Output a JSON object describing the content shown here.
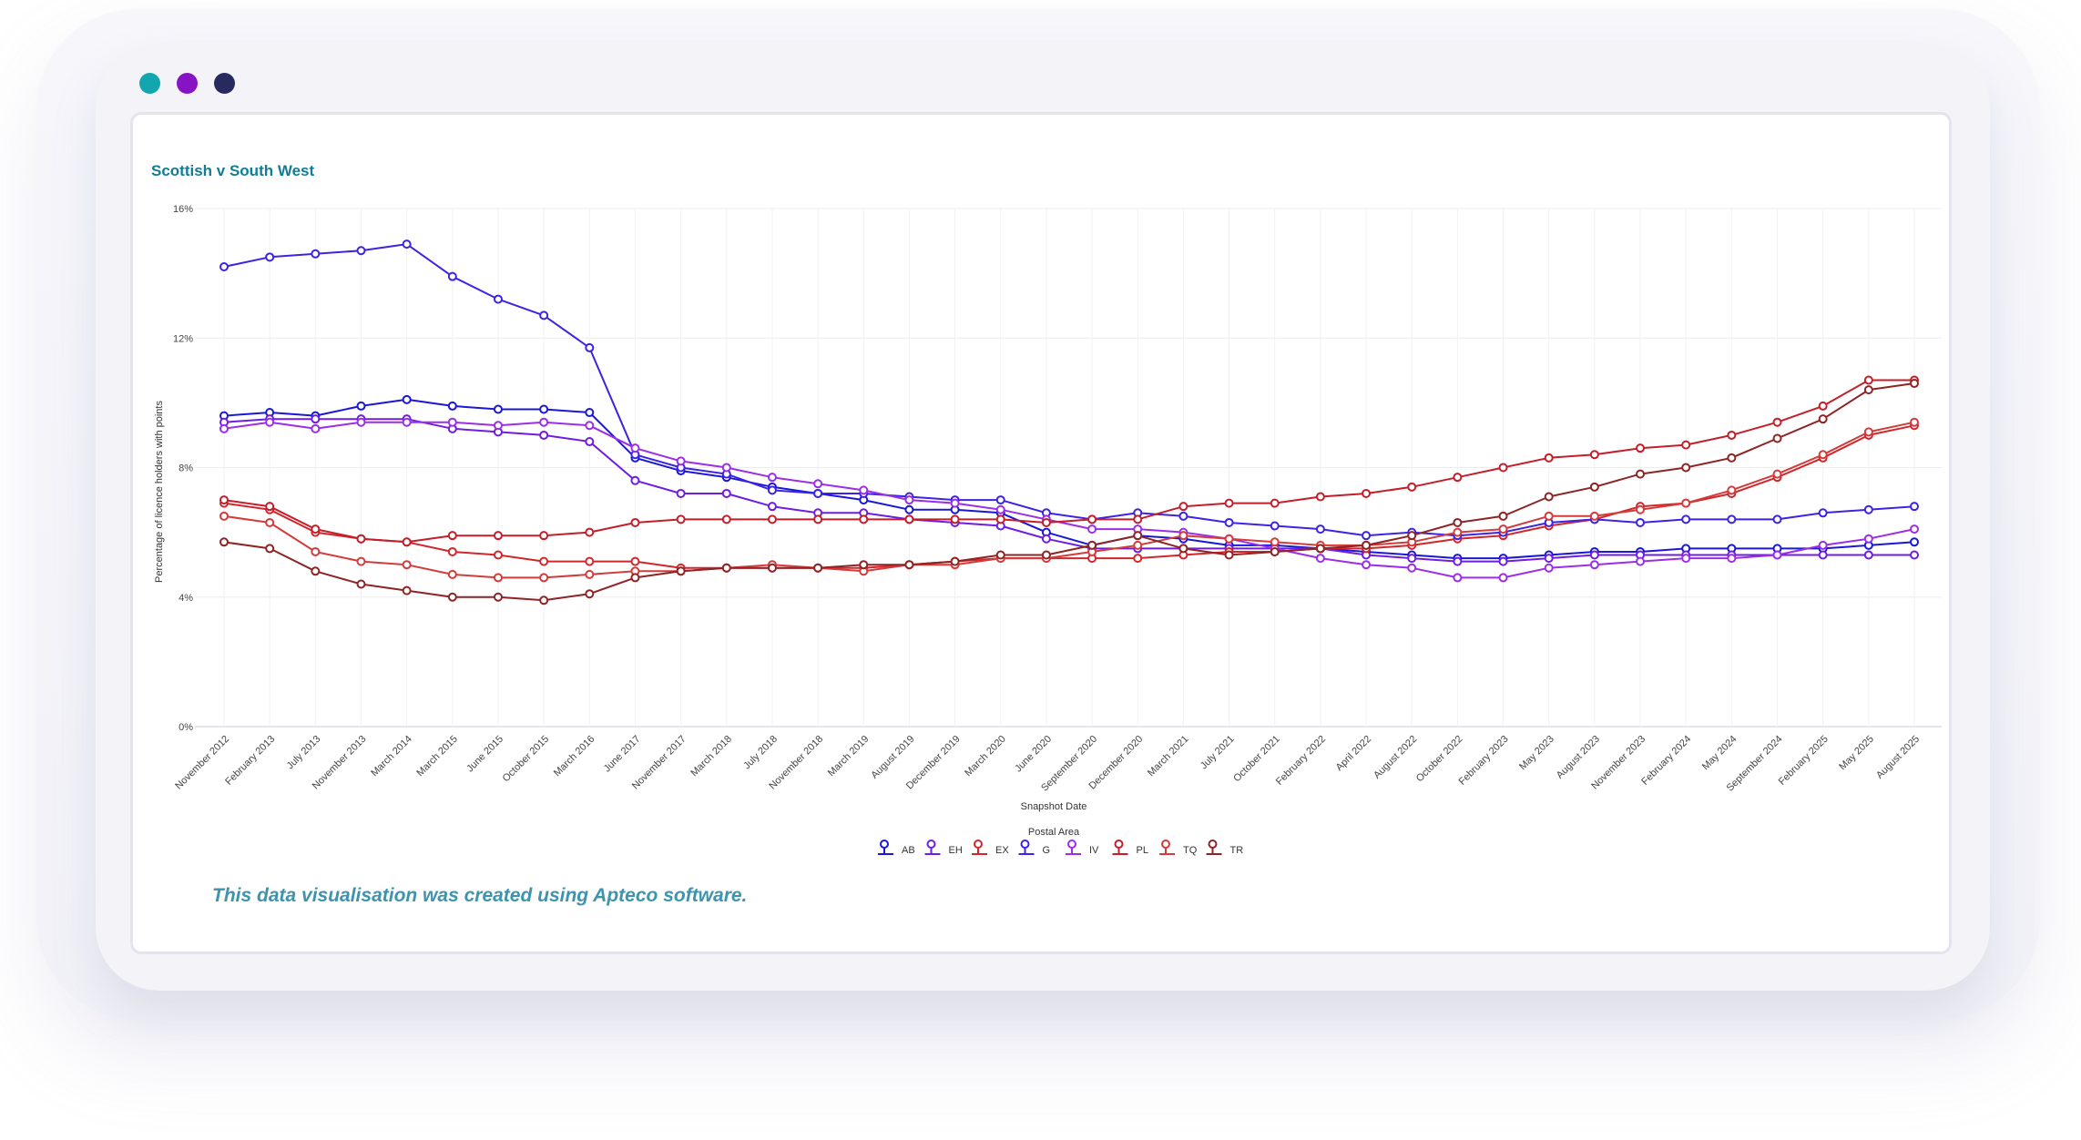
{
  "window": {
    "controls": [
      {
        "name": "teal",
        "color": "#12a6ae"
      },
      {
        "name": "purple",
        "color": "#8613c4"
      },
      {
        "name": "navy",
        "color": "#262a5e"
      }
    ]
  },
  "chart_data": {
    "type": "line",
    "title": "Scottish v South West",
    "xlabel": "Snapshot Date",
    "ylabel": "Percentage of licence holders with points",
    "ylim": [
      0,
      16
    ],
    "yticks": [
      "0%",
      "4%",
      "8%",
      "12%",
      "16%"
    ],
    "grid": true,
    "legend_title": "Postal Area",
    "legend_position": "bottom-center",
    "x": [
      "November 2012",
      "February 2013",
      "July 2013",
      "November 2013",
      "March 2014",
      "March 2015",
      "June 2015",
      "October 2015",
      "March 2016",
      "June 2017",
      "November 2017",
      "March 2018",
      "July 2018",
      "November 2018",
      "March 2019",
      "August 2019",
      "December 2019",
      "March 2020",
      "June 2020",
      "September 2020",
      "December 2020",
      "March 2021",
      "July 2021",
      "October 2021",
      "February 2022",
      "April 2022",
      "August 2022",
      "October 2022",
      "February 2023",
      "May 2023",
      "August 2023",
      "November 2023",
      "February 2024",
      "May 2024",
      "September 2024",
      "February 2025",
      "May 2025",
      "August 2025"
    ],
    "series": [
      {
        "name": "AB",
        "color": "#1a18d6",
        "values": [
          9.6,
          9.7,
          9.6,
          9.9,
          10.1,
          9.9,
          9.8,
          9.8,
          9.7,
          8.3,
          7.9,
          7.7,
          7.4,
          7.2,
          7.0,
          6.7,
          6.7,
          6.6,
          6.0,
          5.6,
          5.9,
          5.8,
          5.6,
          5.6,
          5.5,
          5.4,
          5.3,
          5.2,
          5.2,
          5.3,
          5.4,
          5.4,
          5.5,
          5.5,
          5.5,
          5.5,
          5.6,
          5.7
        ]
      },
      {
        "name": "EH",
        "color": "#6f1de0",
        "values": [
          9.4,
          9.5,
          9.5,
          9.5,
          9.5,
          9.2,
          9.1,
          9.0,
          8.8,
          7.6,
          7.2,
          7.2,
          6.8,
          6.6,
          6.6,
          6.4,
          6.3,
          6.2,
          5.8,
          5.5,
          5.5,
          5.5,
          5.5,
          5.5,
          5.5,
          5.3,
          5.2,
          5.1,
          5.1,
          5.2,
          5.3,
          5.3,
          5.3,
          5.3,
          5.3,
          5.3,
          5.3,
          5.3
        ]
      },
      {
        "name": "EX",
        "color": "#d2262a",
        "values": [
          6.9,
          6.7,
          6.0,
          5.8,
          5.7,
          5.4,
          5.3,
          5.1,
          5.1,
          5.1,
          4.9,
          4.9,
          4.9,
          4.9,
          4.9,
          5.0,
          5.1,
          5.2,
          5.2,
          5.2,
          5.2,
          5.3,
          5.4,
          5.4,
          5.5,
          5.5,
          5.6,
          5.8,
          5.9,
          6.2,
          6.4,
          6.8,
          6.9,
          7.2,
          7.7,
          8.3,
          9.0,
          9.3
        ]
      },
      {
        "name": "G",
        "color": "#3d23e3",
        "values": [
          14.2,
          14.5,
          14.6,
          14.7,
          14.9,
          13.9,
          13.2,
          12.7,
          11.7,
          8.4,
          8.0,
          7.8,
          7.3,
          7.2,
          7.2,
          7.1,
          7.0,
          7.0,
          6.6,
          6.4,
          6.6,
          6.5,
          6.3,
          6.2,
          6.1,
          5.9,
          6.0,
          5.9,
          6.0,
          6.3,
          6.4,
          6.3,
          6.4,
          6.4,
          6.4,
          6.6,
          6.7,
          6.8
        ]
      },
      {
        "name": "IV",
        "color": "#9b2ee6",
        "values": [
          9.2,
          9.4,
          9.2,
          9.4,
          9.4,
          9.4,
          9.3,
          9.4,
          9.3,
          8.6,
          8.2,
          8.0,
          7.7,
          7.5,
          7.3,
          7.0,
          6.9,
          6.7,
          6.4,
          6.1,
          6.1,
          6.0,
          5.8,
          5.5,
          5.2,
          5.0,
          4.9,
          4.6,
          4.6,
          4.9,
          5.0,
          5.1,
          5.2,
          5.2,
          5.3,
          5.6,
          5.8,
          6.1
        ]
      },
      {
        "name": "PL",
        "color": "#c41e2a",
        "values": [
          7.0,
          6.8,
          6.1,
          5.8,
          5.7,
          5.9,
          5.9,
          5.9,
          6.0,
          6.3,
          6.4,
          6.4,
          6.4,
          6.4,
          6.4,
          6.4,
          6.4,
          6.4,
          6.3,
          6.4,
          6.4,
          6.8,
          6.9,
          6.9,
          7.1,
          7.2,
          7.4,
          7.7,
          8.0,
          8.3,
          8.4,
          8.6,
          8.7,
          9.0,
          9.4,
          9.9,
          10.7,
          10.7
        ]
      },
      {
        "name": "TQ",
        "color": "#d43b3b",
        "values": [
          6.5,
          6.3,
          5.4,
          5.1,
          5.0,
          4.7,
          4.6,
          4.6,
          4.7,
          4.8,
          4.8,
          4.9,
          5.0,
          4.9,
          4.8,
          5.0,
          5.0,
          5.2,
          5.2,
          5.4,
          5.6,
          5.9,
          5.8,
          5.7,
          5.6,
          5.6,
          5.7,
          6.0,
          6.1,
          6.5,
          6.5,
          6.7,
          6.9,
          7.3,
          7.8,
          8.4,
          9.1,
          9.4
        ]
      },
      {
        "name": "TR",
        "color": "#8e2424",
        "values": [
          5.7,
          5.5,
          4.8,
          4.4,
          4.2,
          4.0,
          4.0,
          3.9,
          4.1,
          4.6,
          4.8,
          4.9,
          4.9,
          4.9,
          5.0,
          5.0,
          5.1,
          5.3,
          5.3,
          5.6,
          5.9,
          5.5,
          5.3,
          5.4,
          5.5,
          5.6,
          5.9,
          6.3,
          6.5,
          7.1,
          7.4,
          7.8,
          8.0,
          8.3,
          8.9,
          9.5,
          10.4,
          10.6
        ]
      }
    ]
  },
  "footer": {
    "credit": "This data visualisation was created using Apteco software."
  }
}
